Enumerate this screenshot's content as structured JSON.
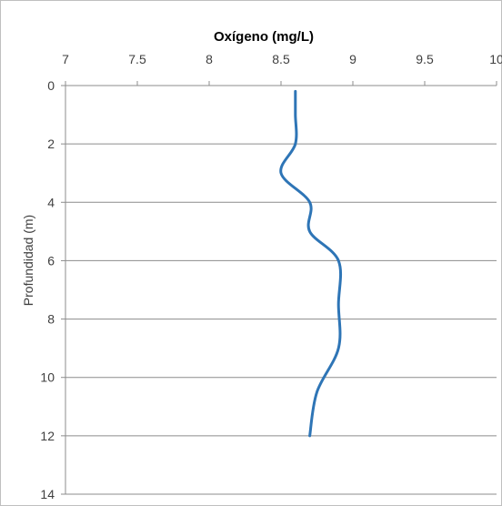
{
  "chart_data": {
    "type": "line",
    "title": "Oxígeno (mg/L)",
    "xlabel": "Oxígeno (mg/L)",
    "ylabel": "Profundidad (m)",
    "x_axis_position": "top",
    "y_axis_inverted": true,
    "xlim": [
      7,
      10
    ],
    "ylim": [
      0,
      14
    ],
    "x_ticks": [
      "7",
      "7.5",
      "8",
      "8.5",
      "9",
      "9.5",
      "10"
    ],
    "y_ticks": [
      "0",
      "2",
      "4",
      "6",
      "8",
      "10",
      "12",
      "14"
    ],
    "grid": "horizontal",
    "legend": "none",
    "series_color": "#2e75b6",
    "series": [
      {
        "x": [
          8.6,
          8.6,
          8.6,
          8.5,
          8.7,
          8.7,
          8.9,
          8.9,
          8.9,
          8.75,
          8.7
        ],
        "y": [
          0.2,
          1,
          2,
          3,
          4,
          5,
          6,
          7.5,
          9,
          10.5,
          12
        ]
      }
    ]
  }
}
